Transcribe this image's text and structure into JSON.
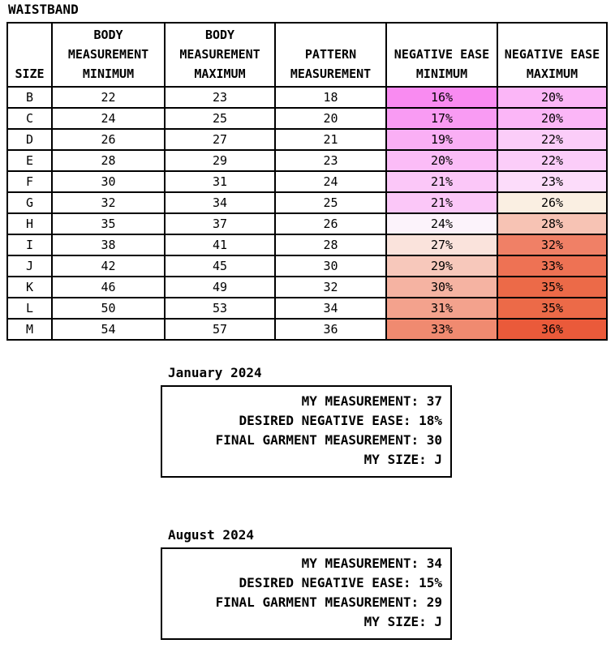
{
  "title": "WAISTBAND",
  "table": {
    "columns": [
      "SIZE",
      "BODY MEASUREMENT MINIMUM",
      "BODY MEASUREMENT MAXIMUM",
      "PATTERN MEASUREMENT",
      "NEGATIVE EASE MINIMUM",
      "NEGATIVE EASE MAXIMUM"
    ],
    "rows": [
      {
        "size": "B",
        "body_min": "22",
        "body_max": "23",
        "pattern": "18",
        "ease_min": "16%",
        "ease_max": "20%",
        "ease_min_color": "#F98BF1",
        "ease_max_color": "#FBB6F7"
      },
      {
        "size": "C",
        "body_min": "24",
        "body_max": "25",
        "pattern": "20",
        "ease_min": "17%",
        "ease_max": "20%",
        "ease_min_color": "#F99BF3",
        "ease_max_color": "#FBB6F7"
      },
      {
        "size": "D",
        "body_min": "26",
        "body_max": "27",
        "pattern": "21",
        "ease_min": "19%",
        "ease_max": "22%",
        "ease_min_color": "#FAAFF5",
        "ease_max_color": "#FBCDF9"
      },
      {
        "size": "E",
        "body_min": "28",
        "body_max": "29",
        "pattern": "23",
        "ease_min": "20%",
        "ease_max": "22%",
        "ease_min_color": "#FBBCF7",
        "ease_max_color": "#FBCDF9"
      },
      {
        "size": "F",
        "body_min": "30",
        "body_max": "31",
        "pattern": "24",
        "ease_min": "21%",
        "ease_max": "23%",
        "ease_min_color": "#FBC7F8",
        "ease_max_color": "#FCDCFA"
      },
      {
        "size": "G",
        "body_min": "32",
        "body_max": "34",
        "pattern": "25",
        "ease_min": "21%",
        "ease_max": "26%",
        "ease_min_color": "#FBC7F8",
        "ease_max_color": "#FAEFE2"
      },
      {
        "size": "H",
        "body_min": "35",
        "body_max": "37",
        "pattern": "26",
        "ease_min": "24%",
        "ease_max": "28%",
        "ease_min_color": "#FCF3FB",
        "ease_max_color": "#F7C3B4"
      },
      {
        "size": "I",
        "body_min": "38",
        "body_max": "41",
        "pattern": "28",
        "ease_min": "27%",
        "ease_max": "32%",
        "ease_min_color": "#FAE3DC",
        "ease_max_color": "#F08066"
      },
      {
        "size": "J",
        "body_min": "42",
        "body_max": "45",
        "pattern": "30",
        "ease_min": "29%",
        "ease_max": "33%",
        "ease_min_color": "#F7C8BB",
        "ease_max_color": "#EE7254"
      },
      {
        "size": "K",
        "body_min": "46",
        "body_max": "49",
        "pattern": "32",
        "ease_min": "30%",
        "ease_max": "35%",
        "ease_min_color": "#F5B3A2",
        "ease_max_color": "#EC6A48"
      },
      {
        "size": "L",
        "body_min": "50",
        "body_max": "53",
        "pattern": "34",
        "ease_min": "31%",
        "ease_max": "35%",
        "ease_min_color": "#F3A28D",
        "ease_max_color": "#EC6A48"
      },
      {
        "size": "M",
        "body_min": "54",
        "body_max": "57",
        "pattern": "36",
        "ease_min": "33%",
        "ease_max": "36%",
        "ease_min_color": "#F08A70",
        "ease_max_color": "#EA5A3A"
      }
    ]
  },
  "notes": [
    {
      "heading": "January 2024",
      "lines": [
        "MY MEASUREMENT: 37",
        "DESIRED NEGATIVE EASE: 18%",
        "FINAL GARMENT MEASUREMENT: 30",
        "MY SIZE: J"
      ]
    },
    {
      "heading": "August 2024",
      "lines": [
        "MY MEASUREMENT: 34",
        "DESIRED NEGATIVE EASE: 15%",
        "FINAL GARMENT MEASUREMENT: 29",
        "MY SIZE: J"
      ]
    }
  ],
  "chart_data": {
    "type": "table",
    "title": "WAISTBAND",
    "columns": [
      "SIZE",
      "BODY MEASUREMENT MINIMUM",
      "BODY MEASUREMENT MAXIMUM",
      "PATTERN MEASUREMENT",
      "NEGATIVE EASE MINIMUM",
      "NEGATIVE EASE MAXIMUM"
    ],
    "rows": [
      [
        "B",
        22,
        23,
        18,
        "16%",
        "20%"
      ],
      [
        "C",
        24,
        25,
        20,
        "17%",
        "20%"
      ],
      [
        "D",
        26,
        27,
        21,
        "19%",
        "22%"
      ],
      [
        "E",
        28,
        29,
        23,
        "20%",
        "22%"
      ],
      [
        "F",
        30,
        31,
        24,
        "21%",
        "23%"
      ],
      [
        "G",
        32,
        34,
        25,
        "21%",
        "26%"
      ],
      [
        "H",
        35,
        37,
        26,
        "24%",
        "28%"
      ],
      [
        "I",
        38,
        41,
        28,
        "27%",
        "32%"
      ],
      [
        "J",
        42,
        45,
        30,
        "29%",
        "33%"
      ],
      [
        "K",
        46,
        49,
        32,
        "30%",
        "35%"
      ],
      [
        "L",
        50,
        53,
        34,
        "31%",
        "35%"
      ],
      [
        "M",
        54,
        57,
        36,
        "33%",
        "36%"
      ]
    ],
    "conditional_formatting": "negative ease columns shaded on diverging scale: magenta-pink (low %) through near-white to red-orange (high %)",
    "annotations": [
      {
        "label": "January 2024",
        "my_measurement": 37,
        "desired_negative_ease": "18%",
        "final_garment_measurement": 30,
        "my_size": "J"
      },
      {
        "label": "August 2024",
        "my_measurement": 34,
        "desired_negative_ease": "15%",
        "final_garment_measurement": 29,
        "my_size": "J"
      }
    ]
  }
}
